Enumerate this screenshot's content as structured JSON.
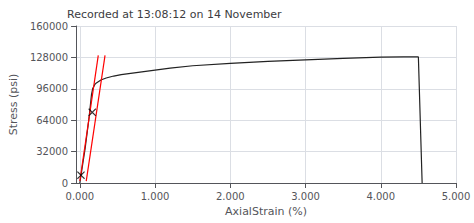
{
  "chart_data": {
    "type": "line",
    "title": "Recorded at 13:08:12 on 14 November",
    "xlabel": "AxialStrain (%)",
    "ylabel": "Stress (psi)",
    "xlim": [
      -0.05,
      5.0
    ],
    "ylim": [
      0,
      160000
    ],
    "xticks": [
      {
        "value": 0.0,
        "label": "0.000"
      },
      {
        "value": 1.0,
        "label": "1.000"
      },
      {
        "value": 2.0,
        "label": "2.000"
      },
      {
        "value": 3.0,
        "label": "3.000"
      },
      {
        "value": 4.0,
        "label": "4.000"
      },
      {
        "value": 5.0,
        "label": "5.000"
      }
    ],
    "yticks": [
      0,
      32000,
      64000,
      96000,
      128000,
      160000
    ],
    "grid": true,
    "series": [
      {
        "color": "#222222",
        "x": [
          0.0,
          0.03,
          0.07,
          0.12,
          0.155,
          0.17,
          0.2,
          0.22,
          0.28,
          0.35,
          0.45,
          0.55,
          0.65,
          0.75,
          0.85,
          1.0,
          1.2,
          1.5,
          2.0,
          2.5,
          3.0,
          3.5,
          4.0,
          4.3,
          4.5,
          4.55
        ],
        "values": [
          0,
          15000,
          35000,
          65000,
          90000,
          96000,
          100500,
          102000,
          105000,
          107000,
          109000,
          110500,
          111500,
          112500,
          113500,
          115000,
          117000,
          119500,
          122000,
          124000,
          125500,
          127000,
          128200,
          128500,
          128500,
          0
        ]
      },
      {
        "color": "#ff0000",
        "x": [
          0.0,
          0.245
        ],
        "values": [
          2000,
          130000
        ]
      },
      {
        "color": "#ff0000",
        "x": [
          0.085,
          0.335
        ],
        "values": [
          2000,
          130000
        ]
      },
      {
        "type": "scatter",
        "marker": "x",
        "color": "#000000",
        "x": [
          0.015,
          0.165
        ],
        "values": [
          8000,
          72000
        ]
      }
    ]
  }
}
